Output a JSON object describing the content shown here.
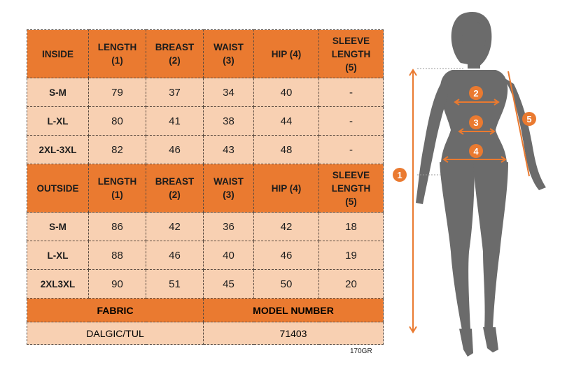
{
  "inside": {
    "header": [
      "INSIDE",
      "LENGTH\n(1)",
      "BREAST\n(2)",
      "WAISt\n(3)",
      "HIP (4)",
      "SLEEVE\nLENGTH\n(5)"
    ],
    "rows": [
      [
        "S-M",
        "79",
        "37",
        "34",
        "40",
        "-"
      ],
      [
        "L-XL",
        "80",
        "41",
        "38",
        "44",
        "-"
      ],
      [
        "2XL-3XL",
        "82",
        "46",
        "43",
        "48",
        "-"
      ]
    ]
  },
  "outside": {
    "header": [
      "OUTSIDE",
      "LENGTH\n(1)",
      "BREAST\n(2)",
      "WAIST\n(3)",
      "HIP (4)",
      "SLEEVE\nLENGTH\n(5)"
    ],
    "rows": [
      [
        "S-M",
        "86",
        "42",
        "36",
        "42",
        "18"
      ],
      [
        "L-XL",
        "88",
        "46",
        "40",
        "46",
        "19"
      ],
      [
        "2XL3XL",
        "90",
        "51",
        "45",
        "50",
        "20"
      ]
    ]
  },
  "footer": {
    "fabric_label": "FABRIC",
    "fabric_value": "DALGIC/TUL",
    "model_label": "MODEL NUMBER",
    "model_value": "71403"
  },
  "weight": "170GR",
  "figure": {
    "markers": [
      "1",
      "2",
      "3",
      "4",
      "5"
    ],
    "colors": {
      "accent": "#ea7a30",
      "silhouette": "#6b6b6b"
    }
  }
}
